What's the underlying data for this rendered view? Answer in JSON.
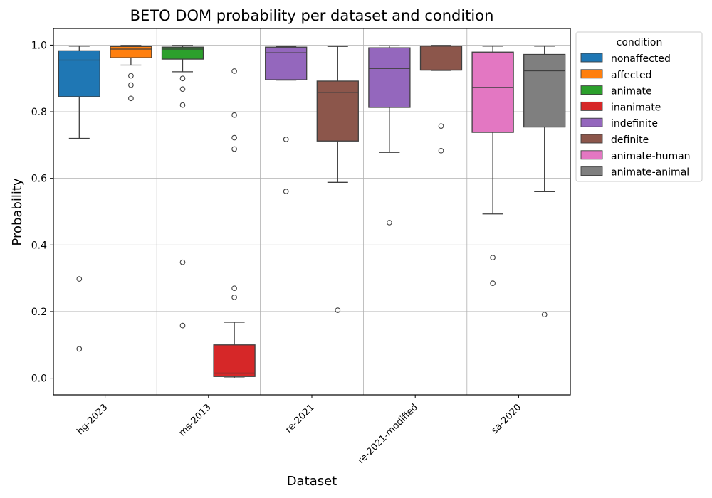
{
  "chart_data": {
    "type": "box",
    "title": "BETO DOM probability per dataset and condition",
    "xlabel": "Dataset",
    "ylabel": "Probability",
    "ylim": [
      -0.05,
      1.05
    ],
    "yticks": [
      0.0,
      0.2,
      0.4,
      0.6,
      0.8,
      1.0
    ],
    "ytick_labels": [
      "0.0",
      "0.2",
      "0.4",
      "0.6",
      "0.8",
      "1.0"
    ],
    "grid": true,
    "legend_position": "outside-top-right",
    "legend_title": "condition",
    "categories": [
      "hg-2023",
      "ms-2013",
      "re-2021",
      "re-2021-modified",
      "sa-2020"
    ],
    "conditions": [
      {
        "name": "nonaffected",
        "color": "#1f77b4"
      },
      {
        "name": "affected",
        "color": "#ff7f0e"
      },
      {
        "name": "animate",
        "color": "#2ca02c"
      },
      {
        "name": "inanimate",
        "color": "#d62728"
      },
      {
        "name": "indefinite",
        "color": "#9467bd"
      },
      {
        "name": "definite",
        "color": "#8c564b"
      },
      {
        "name": "animate-human",
        "color": "#e377c2"
      },
      {
        "name": "animate-animal",
        "color": "#7f7f7f"
      }
    ],
    "boxes": [
      {
        "dataset": "hg-2023",
        "condition": "nonaffected",
        "whisker_low": 0.72,
        "q1": 0.845,
        "median": 0.955,
        "q3": 0.983,
        "whisker_high": 0.997,
        "outliers": [
          0.298,
          0.088
        ]
      },
      {
        "dataset": "hg-2023",
        "condition": "affected",
        "whisker_low": 0.94,
        "q1": 0.962,
        "median": 0.988,
        "q3": 0.996,
        "whisker_high": 0.999,
        "outliers": [
          0.908,
          0.88,
          0.84
        ]
      },
      {
        "dataset": "ms-2013",
        "condition": "animate",
        "whisker_low": 0.92,
        "q1": 0.958,
        "median": 0.988,
        "q3": 0.994,
        "whisker_high": 0.999,
        "outliers": [
          0.9,
          0.868,
          0.82,
          0.348,
          0.158
        ]
      },
      {
        "dataset": "ms-2013",
        "condition": "inanimate",
        "whisker_low": 0.001,
        "q1": 0.005,
        "median": 0.015,
        "q3": 0.1,
        "whisker_high": 0.168,
        "outliers": [
          0.922,
          0.79,
          0.722,
          0.688,
          0.27,
          0.243
        ]
      },
      {
        "dataset": "re-2021",
        "condition": "indefinite",
        "whisker_low": 0.895,
        "q1": 0.896,
        "median": 0.977,
        "q3": 0.994,
        "whisker_high": 0.996,
        "outliers": [
          0.717,
          0.561
        ]
      },
      {
        "dataset": "re-2021",
        "condition": "definite",
        "whisker_low": 0.588,
        "q1": 0.712,
        "median": 0.858,
        "q3": 0.892,
        "whisker_high": 0.996,
        "outliers": [
          0.204
        ]
      },
      {
        "dataset": "re-2021-modified",
        "condition": "indefinite",
        "whisker_low": 0.678,
        "q1": 0.813,
        "median": 0.93,
        "q3": 0.992,
        "whisker_high": 0.998,
        "outliers": [
          0.467
        ]
      },
      {
        "dataset": "re-2021-modified",
        "condition": "definite",
        "whisker_low": 0.924,
        "q1": 0.925,
        "median": 0.925,
        "q3": 0.997,
        "whisker_high": 0.999,
        "outliers": [
          0.757,
          0.683
        ]
      },
      {
        "dataset": "sa-2020",
        "condition": "animate-human",
        "whisker_low": 0.493,
        "q1": 0.738,
        "median": 0.873,
        "q3": 0.979,
        "whisker_high": 0.997,
        "outliers": [
          0.362,
          0.285
        ]
      },
      {
        "dataset": "sa-2020",
        "condition": "animate-animal",
        "whisker_low": 0.56,
        "q1": 0.754,
        "median": 0.923,
        "q3": 0.972,
        "whisker_high": 0.997,
        "outliers": [
          0.191
        ]
      }
    ]
  }
}
